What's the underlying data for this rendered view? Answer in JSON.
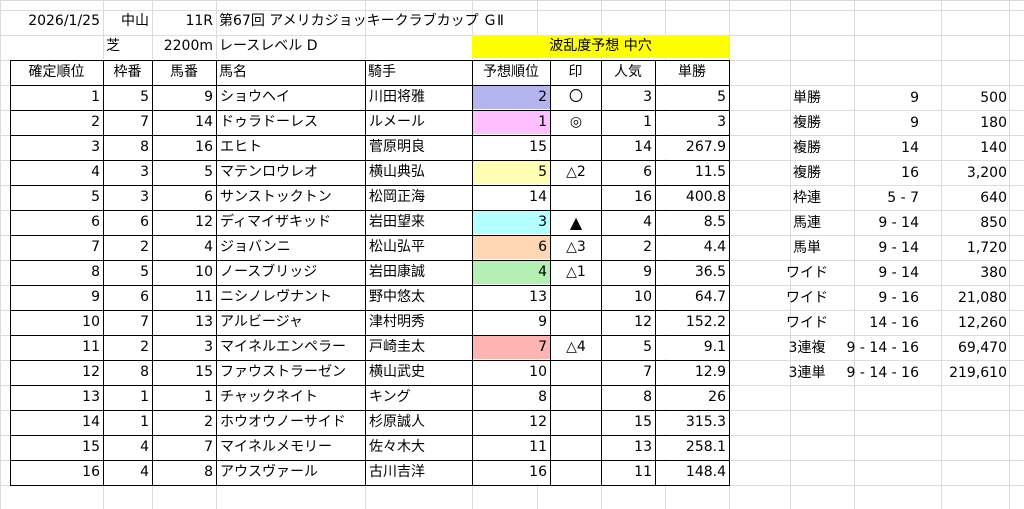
{
  "info": {
    "date": "2026/1/25",
    "venue": "中山",
    "race_no": "11R",
    "race_name": "第67回 アメリカジョッキークラブカップ ＧⅡ",
    "surface": "芝",
    "distance": "2200m",
    "level": "レースレベル D",
    "forecast": "波乱度予想 中穴",
    "forecast_color": "#ffff00"
  },
  "headers": [
    "確定順位",
    "枠番",
    "馬番",
    "馬名",
    "騎手",
    "予想順位",
    "印",
    "人気",
    "単勝"
  ],
  "rows": [
    {
      "rank": "1",
      "waku": "5",
      "uma": "9",
      "name": "ショウヘイ",
      "jockey": "川田将雅",
      "pred": "2",
      "mark": "〇",
      "pop": "3",
      "odds": "5",
      "color": "#b4b4f0"
    },
    {
      "rank": "2",
      "waku": "7",
      "uma": "14",
      "name": "ドゥラドーレス",
      "jockey": "ルメール",
      "pred": "1",
      "mark": "◎",
      "pop": "1",
      "odds": "3",
      "color": "#ffc0ff"
    },
    {
      "rank": "3",
      "waku": "8",
      "uma": "16",
      "name": "エヒト",
      "jockey": "菅原明良",
      "pred": "15",
      "mark": "",
      "pop": "14",
      "odds": "267.9",
      "color": ""
    },
    {
      "rank": "4",
      "waku": "3",
      "uma": "5",
      "name": "マテンロウレオ",
      "jockey": "横山典弘",
      "pred": "5",
      "mark": "△2",
      "pop": "6",
      "odds": "11.5",
      "color": "#ffffb4"
    },
    {
      "rank": "5",
      "waku": "3",
      "uma": "6",
      "name": "サンストックトン",
      "jockey": "松岡正海",
      "pred": "14",
      "mark": "",
      "pop": "16",
      "odds": "400.8",
      "color": ""
    },
    {
      "rank": "6",
      "waku": "6",
      "uma": "12",
      "name": "ディマイザキッド",
      "jockey": "岩田望来",
      "pred": "3",
      "mark": "▲",
      "pop": "4",
      "odds": "8.5",
      "color": "#b4ffff"
    },
    {
      "rank": "7",
      "waku": "2",
      "uma": "4",
      "name": "ジョバンニ",
      "jockey": "松山弘平",
      "pred": "6",
      "mark": "△3",
      "pop": "2",
      "odds": "4.4",
      "color": "#ffd7b4"
    },
    {
      "rank": "8",
      "waku": "5",
      "uma": "10",
      "name": "ノースブリッジ",
      "jockey": "岩田康誠",
      "pred": "4",
      "mark": "△1",
      "pop": "9",
      "odds": "36.5",
      "color": "#b4f0b4"
    },
    {
      "rank": "9",
      "waku": "6",
      "uma": "11",
      "name": "ニシノレヴナント",
      "jockey": "野中悠太",
      "pred": "13",
      "mark": "",
      "pop": "10",
      "odds": "64.7",
      "color": ""
    },
    {
      "rank": "10",
      "waku": "7",
      "uma": "13",
      "name": "アルビージャ",
      "jockey": "津村明秀",
      "pred": "9",
      "mark": "",
      "pop": "12",
      "odds": "152.2",
      "color": ""
    },
    {
      "rank": "11",
      "waku": "2",
      "uma": "3",
      "name": "マイネルエンペラー",
      "jockey": "戸崎圭太",
      "pred": "7",
      "mark": "△4",
      "pop": "5",
      "odds": "9.1",
      "color": "#ffb4b4"
    },
    {
      "rank": "12",
      "waku": "8",
      "uma": "15",
      "name": "ファウストラーゼン",
      "jockey": "横山武史",
      "pred": "10",
      "mark": "",
      "pop": "7",
      "odds": "12.9",
      "color": ""
    },
    {
      "rank": "13",
      "waku": "1",
      "uma": "1",
      "name": "チャックネイト",
      "jockey": "キング",
      "pred": "8",
      "mark": "",
      "pop": "8",
      "odds": "26",
      "color": ""
    },
    {
      "rank": "14",
      "waku": "1",
      "uma": "2",
      "name": "ホウオウノーサイド",
      "jockey": "杉原誠人",
      "pred": "12",
      "mark": "",
      "pop": "15",
      "odds": "315.3",
      "color": ""
    },
    {
      "rank": "15",
      "waku": "4",
      "uma": "7",
      "name": "マイネルメモリー",
      "jockey": "佐々木大",
      "pred": "11",
      "mark": "",
      "pop": "13",
      "odds": "258.1",
      "color": ""
    },
    {
      "rank": "16",
      "waku": "4",
      "uma": "8",
      "name": "アウスヴァール",
      "jockey": "古川吉洋",
      "pred": "16",
      "mark": "",
      "pop": "11",
      "odds": "148.4",
      "color": ""
    }
  ],
  "payouts": [
    {
      "type": "単勝",
      "combo": "9",
      "amount": "500"
    },
    {
      "type": "複勝",
      "combo": "9",
      "amount": "180"
    },
    {
      "type": "複勝",
      "combo": "14",
      "amount": "140"
    },
    {
      "type": "複勝",
      "combo": "16",
      "amount": "3,200"
    },
    {
      "type": "枠連",
      "combo": "5 - 7",
      "amount": "640"
    },
    {
      "type": "馬連",
      "combo": "9 - 14",
      "amount": "850"
    },
    {
      "type": "馬単",
      "combo": "9 - 14",
      "amount": "1,720"
    },
    {
      "type": "ワイド",
      "combo": "9 - 14",
      "amount": "380"
    },
    {
      "type": "ワイド",
      "combo": "9 - 16",
      "amount": "21,080"
    },
    {
      "type": "ワイド",
      "combo": "14 - 16",
      "amount": "12,260"
    },
    {
      "type": "3連複",
      "combo": "9 - 14 - 16",
      "amount": "69,470"
    },
    {
      "type": "3連単",
      "combo": "9 - 14 - 16",
      "amount": "219,610"
    }
  ]
}
